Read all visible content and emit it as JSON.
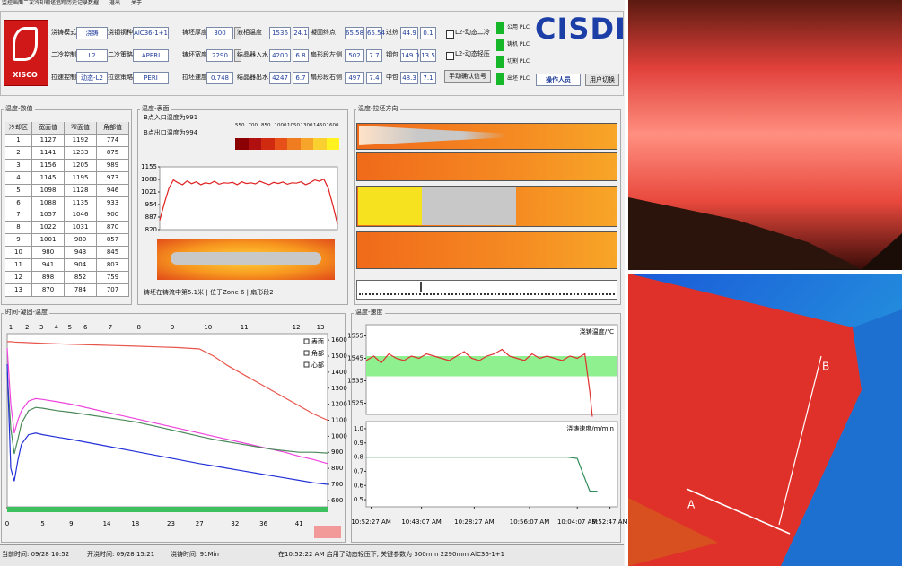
{
  "menu": [
    "监控画面",
    "二次冷却",
    "钢坯追踪",
    "历史记录",
    "数据",
    "退出",
    "关于"
  ],
  "logo_text": "XISCO",
  "field_columns": [
    [
      {
        "label": "浇铸模式",
        "values": [
          "浇铸"
        ]
      },
      {
        "label": "二冷控制",
        "values": [
          "L2"
        ]
      },
      {
        "label": "拉速控制",
        "values": [
          "动态-L2"
        ]
      }
    ],
    [
      {
        "label": "浇钢钢种",
        "values": [
          "AlC36-1+1"
        ]
      },
      {
        "label": "二冷策略",
        "values": [
          "APERI"
        ]
      },
      {
        "label": "拉速策略",
        "values": [
          "PERI"
        ]
      }
    ],
    [
      {
        "label": "铸坯厚度",
        "values": [
          "300"
        ]
      },
      {
        "label": "铸坯宽度",
        "values": [
          "2290"
        ]
      },
      {
        "label": "拉坯速度",
        "values": [
          "0.748"
        ]
      }
    ],
    [
      {
        "label": "液相温度",
        "values": [
          "1536",
          "24.1"
        ]
      },
      {
        "label": "结晶器入水",
        "values": [
          "4200",
          "6.8"
        ]
      },
      {
        "label": "结晶器出水",
        "values": [
          "4247",
          "6.7"
        ]
      }
    ],
    [
      {
        "label": "凝固终点",
        "values": [
          "65.58",
          "65.54"
        ]
      },
      {
        "label": "扇形段左侧",
        "values": [
          "502",
          "7.7"
        ]
      },
      {
        "label": "扇形段右侧",
        "values": [
          "497",
          "7.4"
        ]
      }
    ],
    [
      {
        "label": "过热",
        "values": [
          "44.9",
          "0.1"
        ]
      },
      {
        "label": "钢包",
        "values": [
          "149.0",
          "13.5"
        ]
      },
      {
        "label": "中包",
        "values": [
          "48.3",
          "7.1"
        ]
      }
    ]
  ],
  "checkboxes": [
    "L2-动态二冷",
    "L2-动态轻压"
  ],
  "manual_button": "手动确认信号",
  "plc_status": [
    "公用 PLC",
    "铸机 PLC",
    "切割 PLC",
    "出坯 PLC"
  ],
  "brand": "CISDI",
  "operator": "操作人员",
  "switch_user": "用户切换",
  "panel_titles": [
    "温度-数值",
    "温度-表面",
    "温度-拉坯方向",
    "时间-凝固-温度",
    "温度-速度"
  ],
  "table": {
    "header": [
      "冷却区",
      "宽面值",
      "窄面值",
      "角部值"
    ],
    "rows": [
      [
        1,
        1127,
        1192,
        774
      ],
      [
        2,
        1141,
        1233,
        875
      ],
      [
        3,
        1156,
        1205,
        989
      ],
      [
        4,
        1145,
        1195,
        973
      ],
      [
        5,
        1098,
        1128,
        946
      ],
      [
        6,
        1088,
        1135,
        933
      ],
      [
        7,
        1057,
        1046,
        900
      ],
      [
        8,
        1022,
        1031,
        870
      ],
      [
        9,
        1001,
        980,
        857
      ],
      [
        10,
        980,
        943,
        845
      ],
      [
        11,
        941,
        904,
        803
      ],
      [
        12,
        898,
        852,
        759
      ],
      [
        13,
        870,
        784,
        707
      ]
    ]
  },
  "surface_notes": [
    "B点入口温度为991",
    "B点出口温度为994"
  ],
  "color_scale": {
    "labels": [
      550,
      700,
      850,
      1000,
      1050,
      1300,
      1450,
      1600
    ],
    "colors": [
      "#8b0000",
      "#b01010",
      "#d02a10",
      "#e8501a",
      "#f07c20",
      "#f6a52a",
      "#fad030",
      "#fff21e"
    ]
  },
  "position_note": "铸坯在铸流中第5.1米 | 位于Zone 6 | 扇形段2",
  "chart_data": [
    {
      "type": "line",
      "ylim": [
        820,
        1155
      ],
      "yticks": [
        1155,
        1088,
        1021,
        954,
        887,
        820
      ],
      "series": [
        {
          "color": "#e02020",
          "values": [
            870,
            960,
            1040,
            1085,
            1070,
            1060,
            1080,
            1065,
            1075,
            1060,
            1070,
            1065,
            1078,
            1062,
            1070,
            1068,
            1072,
            1060,
            1075,
            1066,
            1070,
            1064,
            1078,
            1068,
            1060,
            1072,
            1066,
            1074,
            1062,
            1070,
            1068,
            1075,
            1060,
            1070,
            1085,
            1078,
            1090,
            1040,
            950,
            850
          ]
        }
      ]
    },
    {
      "type": "line",
      "xlim": [
        0,
        45
      ],
      "ylim": [
        560,
        1640
      ],
      "xticks": [
        0,
        5,
        9,
        14,
        18,
        23,
        27,
        32,
        36,
        41
      ],
      "yticks": [
        1600,
        1500,
        1400,
        1300,
        1200,
        1100,
        1000,
        900,
        800,
        700,
        600
      ],
      "zone_ticks": [
        {
          "value": 0.5,
          "label": "1"
        },
        {
          "value": 2.8,
          "label": "2"
        },
        {
          "value": 4.8,
          "label": "3"
        },
        {
          "value": 6.9,
          "label": "4"
        },
        {
          "value": 8.8,
          "label": "5"
        },
        {
          "value": 11,
          "label": "6"
        },
        {
          "value": 14.5,
          "label": "7"
        },
        {
          "value": 18.5,
          "label": "8"
        },
        {
          "value": 23.2,
          "label": "9"
        },
        {
          "value": 28.2,
          "label": "10"
        },
        {
          "value": 33.3,
          "label": "11"
        },
        {
          "value": 40.6,
          "label": "12"
        },
        {
          "value": 44,
          "label": "13"
        }
      ],
      "legend": [
        "表面",
        "角部",
        "心部"
      ],
      "x": [
        0,
        0.5,
        1,
        1.5,
        2,
        3,
        4,
        5,
        7,
        9,
        12,
        15,
        18,
        21,
        24,
        27,
        29,
        31,
        33,
        35,
        37,
        39,
        41,
        43,
        45
      ],
      "series": [
        {
          "color": "#e8554a",
          "values": [
            1590,
            1590,
            1588,
            1587,
            1586,
            1584,
            1582,
            1580,
            1577,
            1574,
            1570,
            1566,
            1562,
            1558,
            1553,
            1545,
            1500,
            1440,
            1390,
            1340,
            1290,
            1240,
            1190,
            1140,
            1100
          ]
        },
        {
          "color": "#ee44dd",
          "values": [
            1550,
            1200,
            1020,
            1100,
            1160,
            1220,
            1235,
            1230,
            1215,
            1200,
            1170,
            1140,
            1110,
            1080,
            1050,
            1020,
            1000,
            980,
            960,
            940,
            920,
            900,
            875,
            855,
            830
          ]
        },
        {
          "color": "#4a8a5a",
          "values": [
            1400,
            1050,
            890,
            980,
            1080,
            1160,
            1180,
            1175,
            1160,
            1150,
            1130,
            1110,
            1090,
            1060,
            1030,
            1000,
            980,
            965,
            950,
            935,
            920,
            910,
            900,
            900,
            895
          ]
        },
        {
          "color": "#2230d8",
          "values": [
            1450,
            800,
            720,
            850,
            950,
            1010,
            1020,
            1010,
            995,
            980,
            955,
            930,
            905,
            880,
            855,
            830,
            815,
            800,
            785,
            770,
            755,
            740,
            725,
            710,
            700
          ]
        }
      ]
    },
    {
      "type": "line",
      "title": "浇铸温度/℃",
      "xlim": [
        0,
        100
      ],
      "ylim": [
        1520,
        1560
      ],
      "yticks": [
        1555,
        1545,
        1535,
        1525
      ],
      "band": [
        1537,
        1546
      ],
      "band_color": "#8ef08e",
      "x": [
        0,
        3,
        6,
        9,
        12,
        15,
        18,
        21,
        24,
        27,
        30,
        33,
        36,
        39,
        42,
        45,
        48,
        51,
        54,
        57,
        60,
        63,
        66,
        69,
        72,
        75,
        78,
        81,
        84,
        87,
        89,
        90
      ],
      "series": [
        {
          "color": "#e03030",
          "values": [
            1544,
            1546,
            1543,
            1547,
            1545,
            1544,
            1546,
            1545,
            1547,
            1546,
            1545,
            1544,
            1546,
            1548,
            1545,
            1544,
            1546,
            1547,
            1549,
            1546,
            1545,
            1544,
            1547,
            1545,
            1546,
            1545,
            1544,
            1546,
            1545,
            1547,
            1530,
            1519
          ]
        }
      ]
    },
    {
      "type": "line",
      "title": "浇铸速度/m/min",
      "xlim": [
        0,
        100
      ],
      "ylim": [
        0.45,
        1.05
      ],
      "yticks": [
        {
          "value": 1,
          "label": "1.0"
        },
        0.9,
        0.8,
        0.7,
        0.6,
        0.5
      ],
      "xticks": [
        {
          "value": 2,
          "label": "10:52:27 AM"
        },
        {
          "value": 22,
          "label": "10:43:07 AM"
        },
        {
          "value": 43,
          "label": "10:28:27 AM"
        },
        {
          "value": 65,
          "label": "10:56:07 AM"
        },
        {
          "value": 84,
          "label": "10:04:07 AM"
        },
        {
          "value": 97,
          "label": "9:52:47 AM"
        }
      ],
      "x": [
        0,
        10,
        20,
        30,
        40,
        50,
        60,
        70,
        80,
        84,
        87,
        89,
        92
      ],
      "series": [
        {
          "color": "#2e8b57",
          "values": [
            0.8,
            0.8,
            0.8,
            0.8,
            0.8,
            0.8,
            0.8,
            0.8,
            0.8,
            0.79,
            0.65,
            0.56,
            0.56
          ]
        }
      ]
    }
  ],
  "status_bar": [
    "当前时间: 09/28 10:52",
    "开浇时间: 09/28 15:21",
    "浇铸时间: 91Min",
    "在10:52:22 AM 启用了动态轻压下, 关键参数为 300mm  2290mm  AlC36-1+1"
  ],
  "photo_labels": [
    "A",
    "B"
  ]
}
